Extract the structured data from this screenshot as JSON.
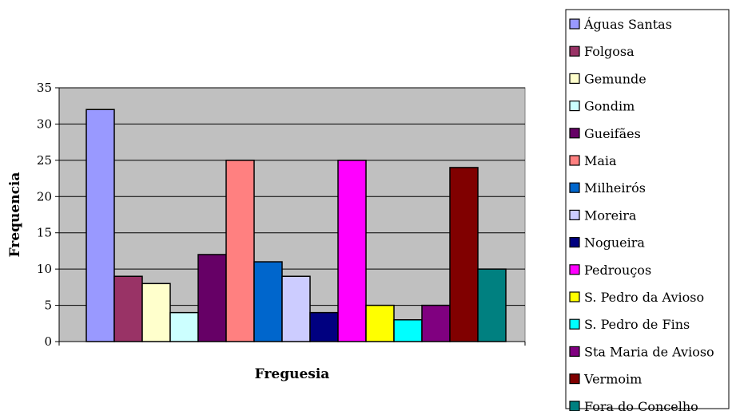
{
  "chart_data": {
    "type": "bar",
    "title": "",
    "xlabel": "Freguesia",
    "ylabel": "Frequencia",
    "ylim": [
      0,
      35
    ],
    "yticks": [
      0,
      5,
      10,
      15,
      20,
      25,
      30,
      35
    ],
    "grid": true,
    "legend_position": "right",
    "series": [
      {
        "name": "Águas Santas",
        "value": 32,
        "color": "#9999FF"
      },
      {
        "name": "Folgosa",
        "value": 9,
        "color": "#993366"
      },
      {
        "name": "Gemunde",
        "value": 8,
        "color": "#FFFFCC"
      },
      {
        "name": "Gondim",
        "value": 4,
        "color": "#CCFFFF"
      },
      {
        "name": "Gueifães",
        "value": 12,
        "color": "#660066"
      },
      {
        "name": "Maia",
        "value": 25,
        "color": "#FF8080"
      },
      {
        "name": "Milheirós",
        "value": 11,
        "color": "#0066CC"
      },
      {
        "name": "Moreira",
        "value": 9,
        "color": "#CCCCFF"
      },
      {
        "name": "Nogueira",
        "value": 4,
        "color": "#000080"
      },
      {
        "name": "Pedrouços",
        "value": 25,
        "color": "#FF00FF"
      },
      {
        "name": "S. Pedro da Avioso",
        "value": 5,
        "color": "#FFFF00"
      },
      {
        "name": "S. Pedro de Fins",
        "value": 3,
        "color": "#00FFFF"
      },
      {
        "name": "Sta Maria de Avioso",
        "value": 5,
        "color": "#800080"
      },
      {
        "name": "Vermoim",
        "value": 24,
        "color": "#800000"
      },
      {
        "name": "Fora do Concelho",
        "value": 10,
        "color": "#008080"
      }
    ],
    "plot_background": "#C0C0C0"
  }
}
